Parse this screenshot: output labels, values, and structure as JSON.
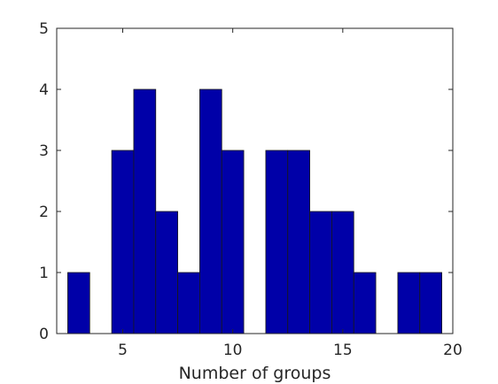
{
  "chart_data": {
    "type": "bar",
    "title": "",
    "xlabel": "Number of groups",
    "ylabel": "",
    "xlim": [
      2,
      20
    ],
    "ylim": [
      0,
      5
    ],
    "xticks": [
      5,
      10,
      15,
      20
    ],
    "yticks": [
      0,
      1,
      2,
      3,
      4,
      5
    ],
    "grid": false,
    "bar_color": "#0000a8",
    "bar_edge_color": "#1a1a1a",
    "bin_width": 1,
    "x": [
      3,
      5,
      6,
      7,
      8,
      9,
      10,
      12,
      13,
      14,
      15,
      16,
      18,
      19
    ],
    "values": [
      1,
      3,
      4,
      2,
      1,
      4,
      3,
      3,
      3,
      2,
      2,
      1,
      1,
      1
    ]
  }
}
